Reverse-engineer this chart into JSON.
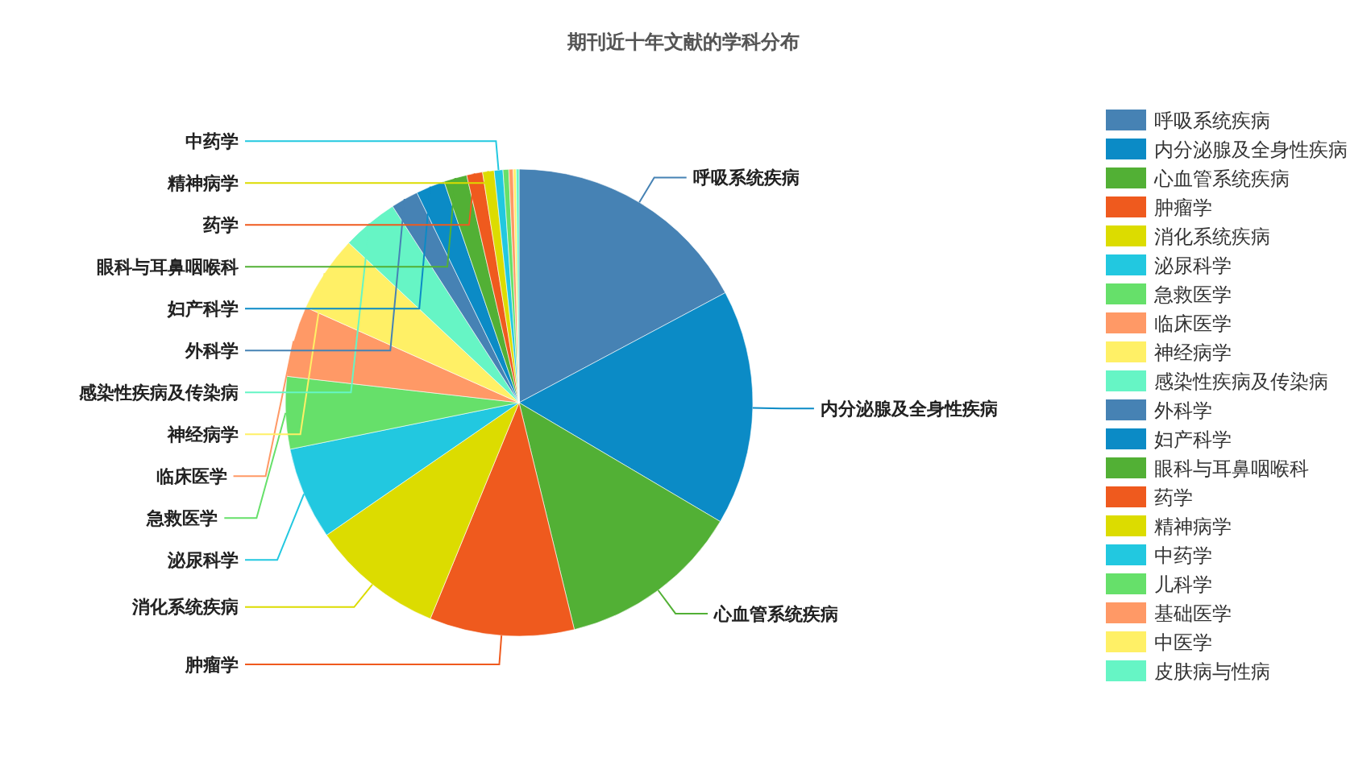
{
  "chart_data": {
    "type": "pie",
    "title": "期刊近十年文献的学科分布",
    "categories": [
      "呼吸系统疾病",
      "内分泌腺及全身性疾病",
      "心血管系统疾病",
      "肿瘤学",
      "消化系统疾病",
      "泌尿科学",
      "急救医学",
      "临床医学",
      "神经病学",
      "感染性疾病及传染病",
      "外科学",
      "妇产科学",
      "眼科与耳鼻咽喉科",
      "药学",
      "精神病学",
      "中药学",
      "儿科学",
      "基础医学",
      "中医学",
      "皮肤病与性病"
    ],
    "values": [
      17.2,
      16.3,
      12.7,
      10,
      9.2,
      6.4,
      5,
      4.9,
      5.3,
      3.9,
      1.9,
      2,
      1.6,
      1.1,
      0.8,
      0.6,
      0.4,
      0.3,
      0.2,
      0.2
    ],
    "colors": [
      "#4682b4",
      "#0b8bc6",
      "#52b035",
      "#ef5a1e",
      "#dcdc00",
      "#22c8e0",
      "#66e06a",
      "#ff9966",
      "#fff066",
      "#66f5c5",
      "#4682b4",
      "#0b8bc6",
      "#52b035",
      "#ef5a1e",
      "#dcdc00",
      "#22c8e0",
      "#66e06a",
      "#ff9966",
      "#fff066",
      "#66f5c5"
    ],
    "legend": "right"
  }
}
